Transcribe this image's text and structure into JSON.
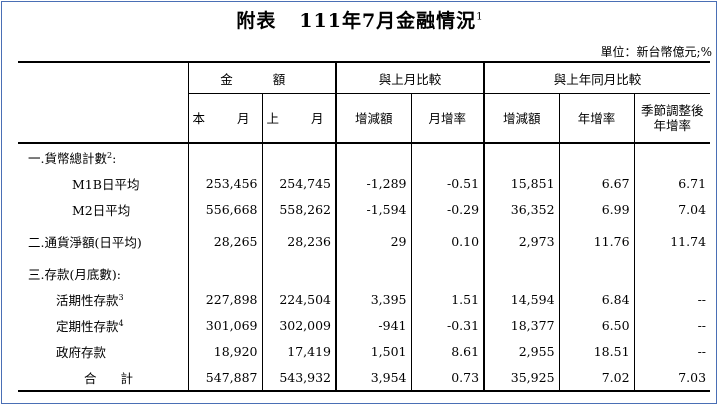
{
  "title": {
    "prefix": "附表",
    "main": "111年7月金融情況",
    "footnote": "1"
  },
  "unit_label": "單位：新台幣億元;%",
  "headers": {
    "amount_group": "金 額",
    "mom_group": "與上月比較",
    "yoy_group": "與上年同月比較",
    "this_month": "本 月",
    "last_month": "上 月",
    "mom_change": "增減額",
    "mom_rate": "月增率",
    "yoy_change": "增減額",
    "yoy_rate": "年增率",
    "sa_rate_line1": "季節調整後",
    "sa_rate_line2": "年增率"
  },
  "rows": {
    "money_supply": {
      "label": "一.貨幣總計數",
      "fn": "2",
      "suffix": ":"
    },
    "m1b": {
      "label": "M1B日平均",
      "this_month": "253,456",
      "last_month": "254,745",
      "mom_change": "-1,289",
      "mom_rate": "-0.51",
      "yoy_change": "15,851",
      "yoy_rate": "6.67",
      "sa_rate": "6.71"
    },
    "m2": {
      "label": "M2日平均",
      "this_month": "556,668",
      "last_month": "558,262",
      "mom_change": "-1,594",
      "mom_rate": "-0.29",
      "yoy_change": "36,352",
      "yoy_rate": "6.99",
      "sa_rate": "7.04"
    },
    "currency": {
      "label": "二.通貨淨額(日平均)",
      "this_month": "28,265",
      "last_month": "28,236",
      "mom_change": "29",
      "mom_rate": "0.10",
      "yoy_change": "2,973",
      "yoy_rate": "11.76",
      "sa_rate": "11.74"
    },
    "deposits": {
      "label": "三.存款(月底數):"
    },
    "demand": {
      "label": "活期性存款",
      "fn": "3",
      "this_month": "227,898",
      "last_month": "224,504",
      "mom_change": "3,395",
      "mom_rate": "1.51",
      "yoy_change": "14,594",
      "yoy_rate": "6.84",
      "sa_rate": "--"
    },
    "time": {
      "label": "定期性存款",
      "fn": "4",
      "this_month": "301,069",
      "last_month": "302,009",
      "mom_change": "-941",
      "mom_rate": "-0.31",
      "yoy_change": "18,377",
      "yoy_rate": "6.50",
      "sa_rate": "--"
    },
    "government": {
      "label": "政府存款",
      "this_month": "18,920",
      "last_month": "17,419",
      "mom_change": "1,501",
      "mom_rate": "8.61",
      "yoy_change": "2,955",
      "yoy_rate": "18.51",
      "sa_rate": "--"
    },
    "total": {
      "label": "合 計",
      "this_month": "547,887",
      "last_month": "543,932",
      "mom_change": "3,954",
      "mom_rate": "0.73",
      "yoy_change": "35,925",
      "yoy_rate": "7.02",
      "sa_rate": "7.03"
    }
  }
}
